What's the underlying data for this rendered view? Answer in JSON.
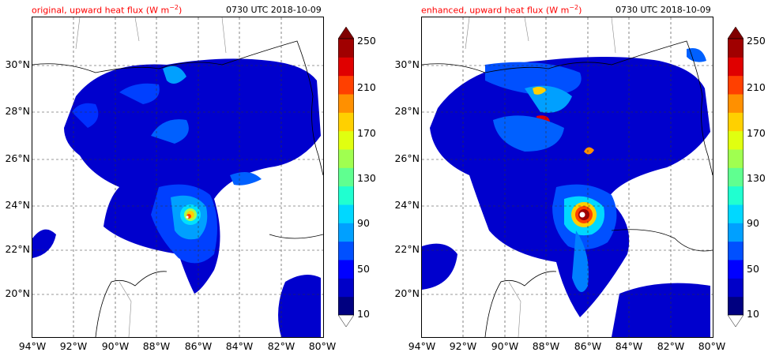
{
  "panels": [
    {
      "id": "original",
      "title": "original, upward heat flux (W m",
      "title_unit_exp": "−2",
      "title_close": ")",
      "timestamp": "0730 UTC 2018-10-09"
    },
    {
      "id": "enhanced",
      "title": "enhanced, upward heat flux (W m",
      "title_unit_exp": "−2",
      "title_close": ")",
      "timestamp": "0730 UTC 2018-10-09"
    }
  ],
  "map": {
    "lat_labels": [
      "30°N",
      "28°N",
      "26°N",
      "24°N",
      "22°N",
      "20°N"
    ],
    "lon_labels": [
      "94°W",
      "92°W",
      "90°W",
      "88°W",
      "86°W",
      "84°W",
      "82°W",
      "80°W"
    ]
  },
  "colorbar": {
    "tick_labels": [
      "250",
      "210",
      "170",
      "130",
      "90",
      "50",
      "10"
    ],
    "colors": [
      "#000080",
      "#0000c8",
      "#0000ff",
      "#0050ff",
      "#00a0ff",
      "#00d8ff",
      "#20ffd0",
      "#60ff90",
      "#a0ff50",
      "#e0ff10",
      "#ffd000",
      "#ff9000",
      "#ff4000",
      "#e00000",
      "#a00000"
    ],
    "over_color": "#800000",
    "under_color": "#ffffff"
  }
}
